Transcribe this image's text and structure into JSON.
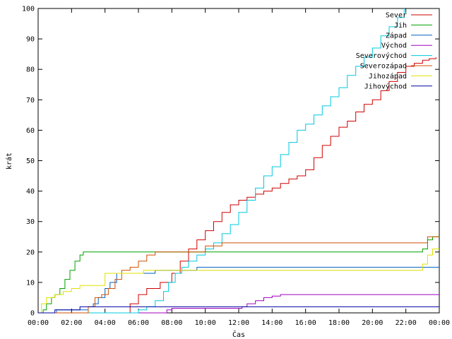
{
  "chart_data": {
    "type": "line",
    "title": "",
    "xlabel": "Čas",
    "ylabel": "krát",
    "xlim": [
      0,
      24
    ],
    "ylim": [
      0,
      100
    ],
    "x_ticks": [
      "00:00",
      "02:00",
      "04:00",
      "06:00",
      "08:00",
      "10:00",
      "12:00",
      "14:00",
      "16:00",
      "18:00",
      "20:00",
      "22:00",
      "00:00"
    ],
    "y_ticks": [
      "0",
      "10",
      "20",
      "30",
      "40",
      "50",
      "60",
      "70",
      "80",
      "90",
      "100"
    ],
    "legend_position": "top-right",
    "grid": false,
    "x_unit": "hours",
    "series": [
      {
        "name": "Sever",
        "color": "#d00000",
        "points": [
          [
            0,
            0
          ],
          [
            5.3,
            0
          ],
          [
            5.5,
            3
          ],
          [
            6.0,
            6
          ],
          [
            6.5,
            8
          ],
          [
            7.3,
            10
          ],
          [
            8.0,
            13
          ],
          [
            8.5,
            17
          ],
          [
            9.0,
            21
          ],
          [
            9.5,
            24
          ],
          [
            10.0,
            27
          ],
          [
            10.5,
            30
          ],
          [
            11.0,
            33
          ],
          [
            11.5,
            35.5
          ],
          [
            12.0,
            37
          ],
          [
            12.5,
            38
          ],
          [
            13.0,
            39
          ],
          [
            13.5,
            40
          ],
          [
            14.0,
            41
          ],
          [
            14.5,
            42.5
          ],
          [
            15.0,
            44
          ],
          [
            15.5,
            45
          ],
          [
            16.0,
            47
          ],
          [
            16.5,
            51
          ],
          [
            17.0,
            55
          ],
          [
            17.5,
            58
          ],
          [
            18.0,
            61
          ],
          [
            18.5,
            63
          ],
          [
            19.0,
            66
          ],
          [
            19.5,
            68.5
          ],
          [
            20.0,
            70
          ],
          [
            20.5,
            73
          ],
          [
            21.0,
            76
          ],
          [
            21.5,
            79
          ],
          [
            22.0,
            81
          ],
          [
            22.5,
            82
          ],
          [
            23.0,
            83
          ],
          [
            23.4,
            83.5
          ],
          [
            23.8,
            84
          ]
        ]
      },
      {
        "name": "Jih",
        "color": "#00a000",
        "points": [
          [
            0,
            0
          ],
          [
            0.3,
            1
          ],
          [
            0.5,
            3
          ],
          [
            0.8,
            5
          ],
          [
            1.0,
            6
          ],
          [
            1.3,
            8
          ],
          [
            1.6,
            11
          ],
          [
            1.9,
            14
          ],
          [
            2.2,
            17
          ],
          [
            2.5,
            19
          ],
          [
            2.7,
            20
          ],
          [
            22.8,
            20
          ],
          [
            23.0,
            21
          ],
          [
            23.3,
            24
          ],
          [
            23.6,
            25
          ],
          [
            24,
            25
          ]
        ]
      },
      {
        "name": "Západ",
        "color": "#0060c0",
        "points": [
          [
            0,
            0
          ],
          [
            1.0,
            0
          ],
          [
            1.1,
            1
          ],
          [
            2.8,
            1
          ],
          [
            3.0,
            2
          ],
          [
            3.3,
            3
          ],
          [
            3.6,
            5
          ],
          [
            4.0,
            8
          ],
          [
            4.3,
            10
          ],
          [
            4.7,
            13
          ],
          [
            6.8,
            13
          ],
          [
            7.0,
            14
          ],
          [
            9.2,
            14
          ],
          [
            9.5,
            15
          ],
          [
            24,
            15
          ]
        ]
      },
      {
        "name": "Východ",
        "color": "#a000c0",
        "points": [
          [
            0,
            0
          ],
          [
            7.5,
            0
          ],
          [
            7.7,
            1
          ],
          [
            8.0,
            1.5
          ],
          [
            12.0,
            1.5
          ],
          [
            12.2,
            2
          ],
          [
            12.5,
            3
          ],
          [
            13.0,
            4
          ],
          [
            13.5,
            5
          ],
          [
            14.0,
            5.5
          ],
          [
            14.5,
            6
          ],
          [
            24,
            6
          ]
        ]
      },
      {
        "name": "Severovýchod",
        "color": "#00c8e0",
        "points": [
          [
            0,
            0
          ],
          [
            5.3,
            0
          ],
          [
            6.0,
            1
          ],
          [
            6.5,
            2
          ],
          [
            7.0,
            4
          ],
          [
            7.5,
            7
          ],
          [
            7.8,
            10
          ],
          [
            8.2,
            13
          ],
          [
            8.6,
            15
          ],
          [
            9.0,
            17
          ],
          [
            9.5,
            19
          ],
          [
            10.0,
            21
          ],
          [
            10.5,
            23
          ],
          [
            11.0,
            26
          ],
          [
            11.5,
            29
          ],
          [
            12.0,
            33
          ],
          [
            12.5,
            37
          ],
          [
            13.0,
            41
          ],
          [
            13.5,
            45
          ],
          [
            14.0,
            48
          ],
          [
            14.5,
            52
          ],
          [
            15.0,
            56
          ],
          [
            15.5,
            60
          ],
          [
            16.0,
            62
          ],
          [
            16.5,
            65
          ],
          [
            17.0,
            68
          ],
          [
            17.5,
            71
          ],
          [
            18.0,
            74
          ],
          [
            18.5,
            78
          ],
          [
            19.0,
            81
          ],
          [
            19.5,
            84
          ],
          [
            20.0,
            87
          ],
          [
            20.5,
            91
          ],
          [
            21.0,
            94
          ],
          [
            21.5,
            97
          ],
          [
            21.9,
            100
          ]
        ]
      },
      {
        "name": "Severozápad",
        "color": "#d05000",
        "points": [
          [
            0,
            0
          ],
          [
            2.8,
            0
          ],
          [
            3.0,
            2
          ],
          [
            3.4,
            5
          ],
          [
            3.8,
            6
          ],
          [
            4.2,
            8
          ],
          [
            4.6,
            11
          ],
          [
            5.0,
            14
          ],
          [
            5.5,
            15
          ],
          [
            6.0,
            17
          ],
          [
            6.5,
            19
          ],
          [
            7.0,
            20
          ],
          [
            9.5,
            20
          ],
          [
            10.0,
            22
          ],
          [
            11.0,
            23
          ],
          [
            23.0,
            23
          ],
          [
            23.3,
            25
          ],
          [
            24,
            25
          ]
        ]
      },
      {
        "name": "Jihozápad",
        "color": "#e0e000",
        "points": [
          [
            0,
            0
          ],
          [
            0.2,
            3
          ],
          [
            0.5,
            5
          ],
          [
            1.0,
            6
          ],
          [
            1.5,
            7
          ],
          [
            2.0,
            8
          ],
          [
            2.5,
            9
          ],
          [
            3.8,
            9
          ],
          [
            4.0,
            13
          ],
          [
            6.0,
            13
          ],
          [
            6.3,
            14
          ],
          [
            22.8,
            14
          ],
          [
            23.0,
            16
          ],
          [
            23.3,
            19
          ],
          [
            23.6,
            21
          ],
          [
            24,
            21
          ]
        ]
      },
      {
        "name": "Jihovýchod",
        "color": "#0000a0",
        "points": [
          [
            0,
            0
          ],
          [
            0.8,
            0
          ],
          [
            1.0,
            1
          ],
          [
            2.3,
            1
          ],
          [
            2.5,
            2
          ],
          [
            24,
            2
          ]
        ]
      }
    ]
  }
}
